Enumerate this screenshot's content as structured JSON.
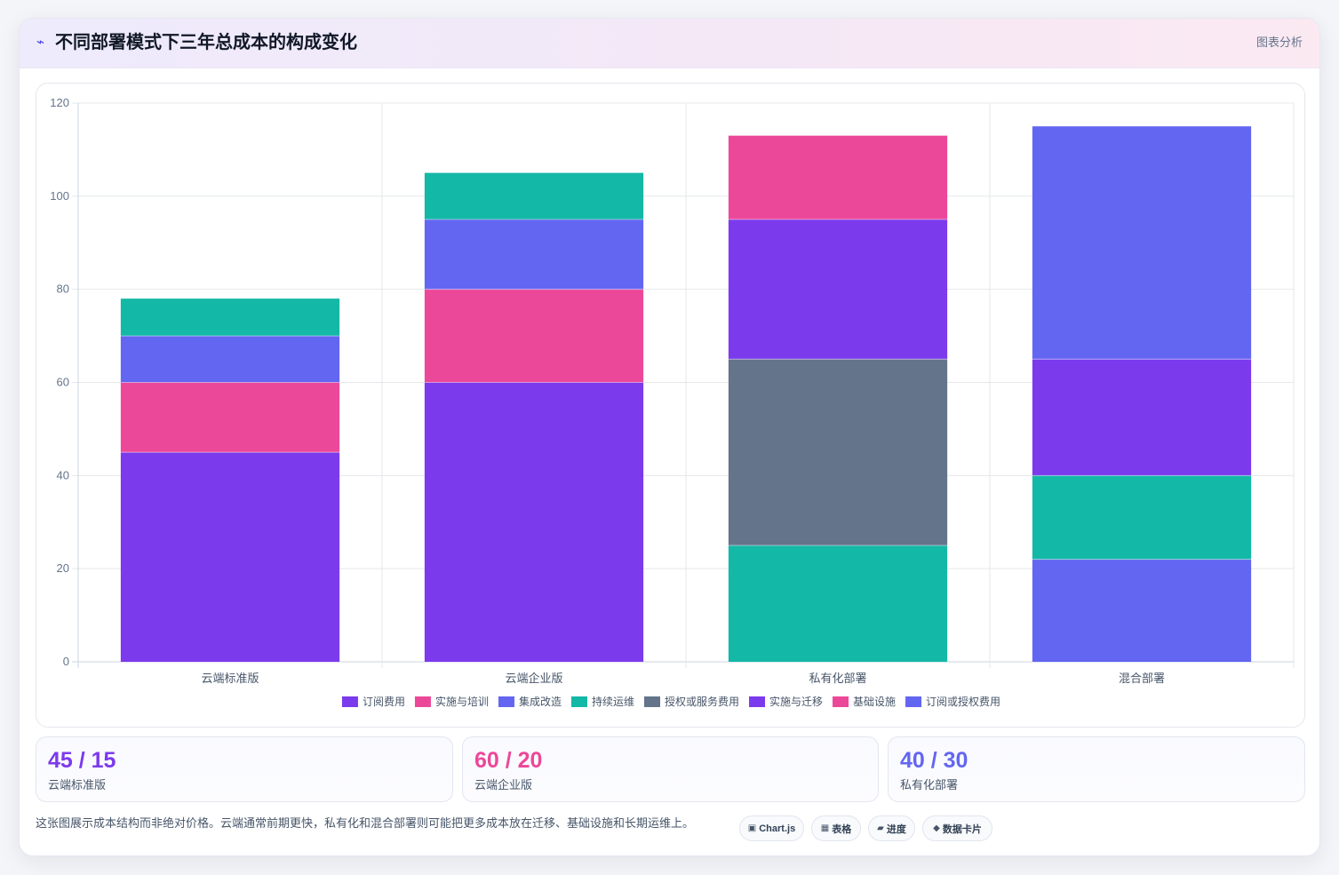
{
  "header": {
    "icon": "chart-icon",
    "title": "不同部署模式下三年总成本的构成变化",
    "tag": "图表分析"
  },
  "chart_data": {
    "type": "bar",
    "stacked": true,
    "title": "",
    "xlabel": "",
    "ylabel": "",
    "ylim": [
      0,
      120
    ],
    "yticks": [
      0,
      20,
      40,
      60,
      80,
      100,
      120
    ],
    "grid": true,
    "legend_position": "bottom",
    "categories": [
      "云端标准版",
      "云端企业版",
      "私有化部署",
      "混合部署"
    ],
    "series": [
      {
        "name": "订阅费用",
        "color": "#7c3aed",
        "values": [
          45,
          60,
          0,
          0
        ]
      },
      {
        "name": "实施与培训",
        "color": "#ec4899",
        "values": [
          15,
          20,
          0,
          0
        ]
      },
      {
        "name": "集成改造",
        "color": "#6366f1",
        "values": [
          10,
          15,
          0,
          0
        ]
      },
      {
        "name": "持续运维",
        "color": "#14b8a6",
        "values": [
          8,
          10,
          25,
          18
        ]
      },
      {
        "name": "授权或服务费用",
        "color": "#64748b",
        "values": [
          0,
          0,
          40,
          0
        ]
      },
      {
        "name": "实施与迁移",
        "color": "#7c3aed",
        "values": [
          0,
          0,
          30,
          25
        ]
      },
      {
        "name": "基础设施",
        "color": "#ec4899",
        "values": [
          0,
          0,
          18,
          0
        ]
      },
      {
        "name": "订阅或授权费用",
        "color": "#6366f1",
        "values": [
          0,
          0,
          0,
          72
        ]
      }
    ],
    "stack_order": [
      [
        0,
        1,
        2,
        3
      ],
      [
        0,
        1,
        2,
        3
      ],
      [
        3,
        4,
        5,
        6
      ],
      [
        7,
        3,
        5,
        7
      ]
    ]
  },
  "stats": [
    {
      "value": "45 / 15",
      "label": "云端标准版",
      "color": "#7c3aed"
    },
    {
      "value": "60 / 20",
      "label": "云端企业版",
      "color": "#ec4899"
    },
    {
      "value": "40 / 30",
      "label": "私有化部署",
      "color": "#6366f1"
    }
  ],
  "footnote": "这张图展示成本结构而非绝对价格。云端通常前期更快，私有化和混合部署则可能把更多成本放在迁移、基础设施和长期运维上。",
  "pills": [
    {
      "icon": "▣",
      "label": "Chart.js"
    },
    {
      "icon": "▦",
      "label": "表格"
    },
    {
      "icon": "▰",
      "label": "进度"
    },
    {
      "icon": "◆",
      "label": "数据卡片"
    }
  ]
}
